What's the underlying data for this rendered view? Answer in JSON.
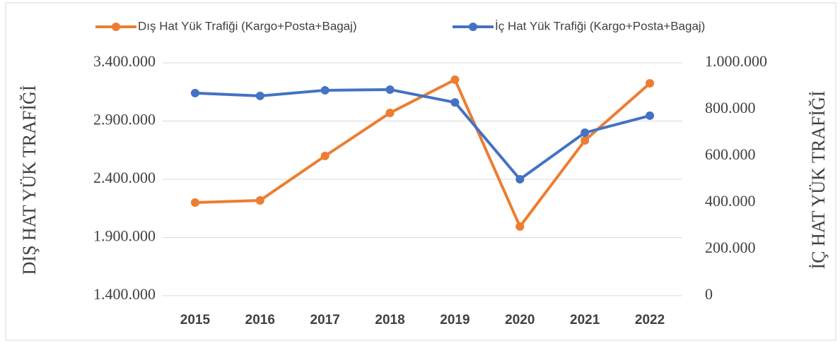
{
  "chart_data": {
    "type": "line",
    "y_label": "DIŞ HAT YÜK TRAFİĞİ",
    "y2_label": "İÇ HAT YÜK TRAFİĞİ",
    "categories": [
      "2015",
      "2016",
      "2017",
      "2018",
      "2019",
      "2020",
      "2021",
      "2022"
    ],
    "series": [
      {
        "name": "Dış Hat Yük Trafiği (Kargo+Posta+Bagaj)",
        "color": "#ed7d31",
        "axis": "y",
        "values": [
          2200000,
          2218000,
          2600000,
          2970000,
          3255000,
          1994000,
          2733000,
          3224000
        ]
      },
      {
        "name": "İç Hat Yük Trafiği (Kargo+Posta+Bagaj)",
        "color": "#4472c4",
        "axis": "y2",
        "values": [
          870000,
          858000,
          882000,
          885000,
          830000,
          500000,
          700000,
          773000
        ]
      }
    ],
    "ylim": [
      1400000,
      3400000
    ],
    "yticks": [
      {
        "value": 1400000,
        "label": "1.400.000"
      },
      {
        "value": 1900000,
        "label": "1.900.000"
      },
      {
        "value": 2400000,
        "label": "2.400.000"
      },
      {
        "value": 2900000,
        "label": "2.900.000"
      },
      {
        "value": 3400000,
        "label": "3.400.000"
      }
    ],
    "y2lim": [
      0,
      1000000
    ],
    "y2ticks": [
      0,
      {
        "value": 200000,
        "label": "200.000"
      },
      {
        "value": 400000,
        "label": "400.000"
      },
      {
        "value": 600000,
        "label": "600.000"
      },
      {
        "value": 800000,
        "label": "800.000"
      },
      {
        "value": 1000000,
        "label": "1.000.000"
      }
    ],
    "grid": true,
    "legend": "top"
  }
}
